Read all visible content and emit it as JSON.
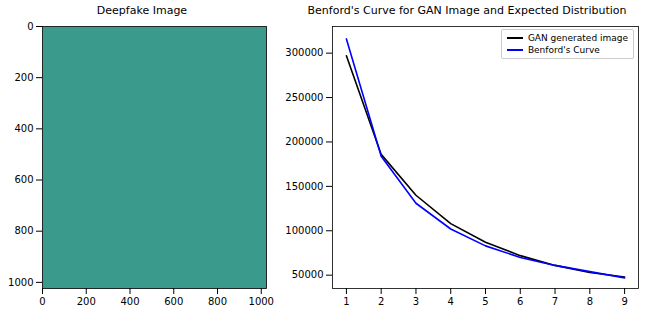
{
  "chart_data": [
    {
      "type": "image",
      "title": "Deepfake Image",
      "xlim": [
        0,
        1024
      ],
      "ylim": [
        1024,
        0
      ],
      "xticks": [
        0,
        200,
        400,
        600,
        800,
        1000
      ],
      "yticks": [
        0,
        200,
        400,
        600,
        800,
        1000
      ]
    },
    {
      "type": "line",
      "title": "Benford's Curve for GAN Image and Expected Distribution",
      "x": [
        1,
        2,
        3,
        4,
        5,
        6,
        7,
        8,
        9
      ],
      "series": [
        {
          "name": "GAN generated image",
          "color": "#000000",
          "values": [
            297000,
            186000,
            140000,
            108000,
            87000,
            72000,
            61000,
            53000,
            48000
          ]
        },
        {
          "name": "Benford's Curve",
          "color": "#0000ff",
          "values": [
            316000,
            184000,
            131000,
            102000,
            83000,
            70000,
            61000,
            54000,
            47000
          ]
        }
      ],
      "xlim": [
        0.6,
        9.4
      ],
      "ylim": [
        35000,
        330000
      ],
      "xticks": [
        1,
        2,
        3,
        4,
        5,
        6,
        7,
        8,
        9
      ],
      "yticks": [
        50000,
        100000,
        150000,
        200000,
        250000,
        300000
      ],
      "legend": "upper right",
      "grid": false
    }
  ]
}
